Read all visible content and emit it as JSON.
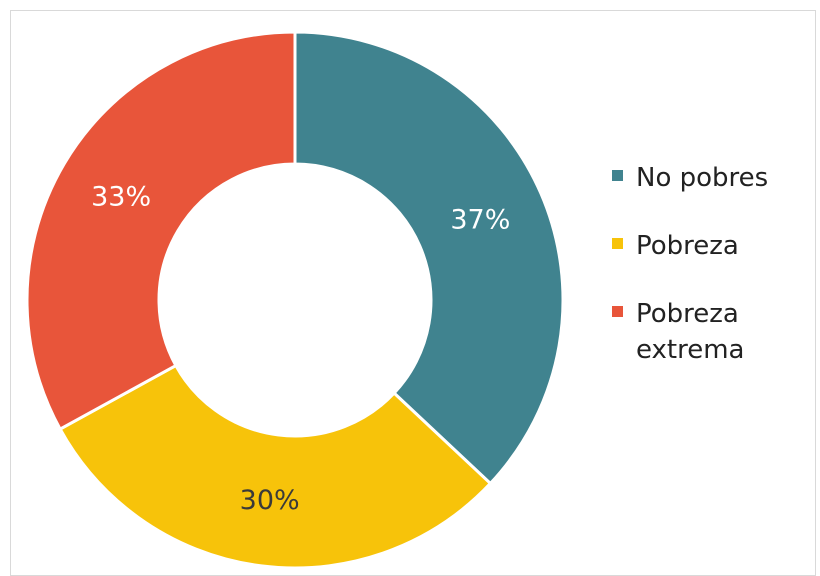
{
  "chart_data": {
    "type": "pie",
    "variant": "donut",
    "title": "",
    "categories": [
      "No pobres",
      "Pobreza",
      "Pobreza extrema"
    ],
    "values": [
      37,
      30,
      33
    ],
    "data_labels": [
      "37%",
      "30%",
      "33%"
    ],
    "colors": [
      "#40838f",
      "#f7c30a",
      "#e8553a"
    ],
    "label_colors": [
      "#ffffff",
      "#3a3a3a",
      "#ffffff"
    ],
    "start_angle_deg": 0,
    "direction": "clockwise",
    "legend_position": "right"
  },
  "legend": {
    "items": [
      {
        "label": "No pobres",
        "color": "#40838f"
      },
      {
        "label": "Pobreza",
        "color": "#f7c30a"
      },
      {
        "label": "Pobreza extrema",
        "color": "#e8553a"
      }
    ]
  }
}
